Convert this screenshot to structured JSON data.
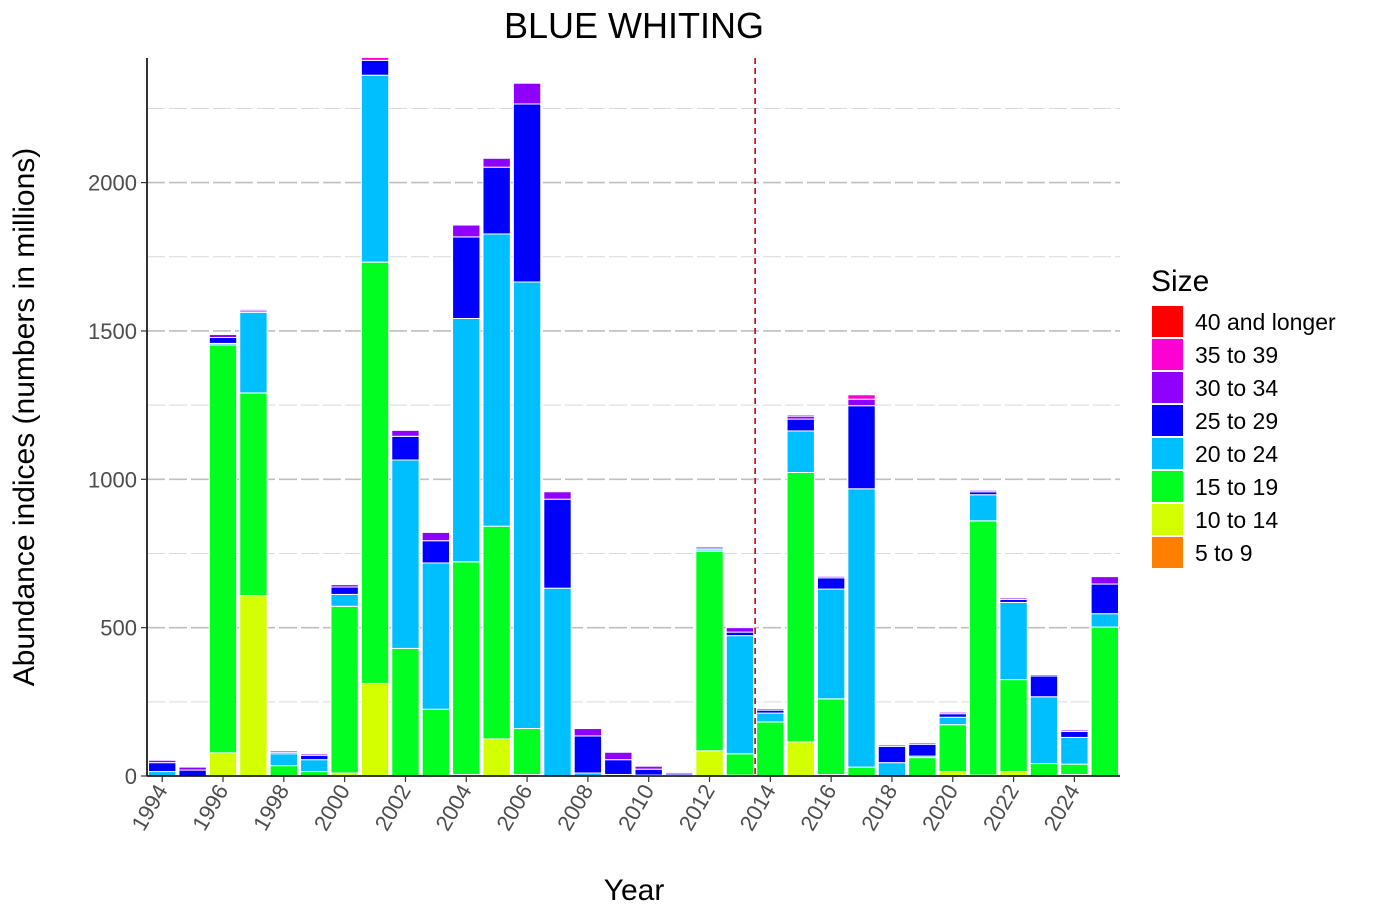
{
  "chart_data": {
    "type": "bar",
    "stacked": true,
    "title": "BLUE WHITING",
    "xlabel": "Year",
    "ylabel": "Abundance indices (numbers in millions)",
    "ylim": [
      0,
      2420
    ],
    "yticks": [
      0,
      500,
      1000,
      1500,
      2000
    ],
    "xticks": [
      1994,
      1996,
      1998,
      2000,
      2002,
      2004,
      2006,
      2008,
      2010,
      2012,
      2014,
      2016,
      2018,
      2020,
      2022,
      2024
    ],
    "grid": true,
    "legend_position": "right",
    "legend_title": "Size",
    "reference_line": {
      "x": 2013.5,
      "style": "dashed",
      "color": "#cc0000"
    },
    "x": [
      1994,
      1995,
      1996,
      1997,
      1998,
      1999,
      2000,
      2001,
      2002,
      2003,
      2004,
      2005,
      2006,
      2007,
      2008,
      2009,
      2010,
      2011,
      2012,
      2013,
      2014,
      2015,
      2016,
      2017,
      2018,
      2019,
      2020,
      2021,
      2022,
      2023,
      2024,
      2025
    ],
    "series": [
      {
        "name": "5 to 9",
        "color": "#ff7f00",
        "values": [
          0,
          0,
          0,
          0,
          0,
          0,
          0,
          0,
          0,
          0,
          0,
          0,
          0,
          0,
          0,
          0,
          0,
          0,
          0,
          0,
          0,
          0,
          0,
          0,
          0,
          0,
          0,
          0,
          0,
          0,
          0,
          0
        ]
      },
      {
        "name": "10 to 14",
        "color": "#d4ff00",
        "values": [
          0,
          0,
          78,
          608,
          0,
          0,
          10,
          312,
          0,
          0,
          5,
          125,
          5,
          0,
          0,
          0,
          0,
          0,
          85,
          3,
          0,
          115,
          5,
          0,
          0,
          0,
          15,
          3,
          15,
          0,
          5,
          0
        ]
      },
      {
        "name": "15 to 19",
        "color": "#00ff20",
        "values": [
          0,
          0,
          1375,
          683,
          35,
          15,
          562,
          1420,
          430,
          225,
          717,
          717,
          155,
          0,
          0,
          0,
          0,
          0,
          673,
          72,
          182,
          908,
          255,
          30,
          0,
          62,
          158,
          857,
          310,
          42,
          35,
          502
        ]
      },
      {
        "name": "20 to 24",
        "color": "#00bfff",
        "values": [
          15,
          0,
          5,
          272,
          40,
          40,
          40,
          630,
          635,
          493,
          820,
          985,
          1505,
          633,
          10,
          5,
          3,
          2,
          5,
          398,
          30,
          140,
          370,
          938,
          45,
          5,
          25,
          88,
          260,
          225,
          90,
          45
        ]
      },
      {
        "name": "25 to 29",
        "color": "#0000ff",
        "values": [
          30,
          20,
          20,
          5,
          5,
          15,
          25,
          50,
          80,
          75,
          275,
          225,
          600,
          300,
          125,
          50,
          20,
          5,
          5,
          12,
          10,
          40,
          38,
          280,
          55,
          40,
          12,
          10,
          10,
          70,
          20,
          100
        ]
      },
      {
        "name": "30 to 34",
        "color": "#8f00ff",
        "values": [
          8,
          10,
          10,
          5,
          5,
          5,
          8,
          0,
          20,
          28,
          40,
          30,
          70,
          25,
          25,
          25,
          10,
          5,
          5,
          15,
          5,
          10,
          5,
          22,
          5,
          5,
          5,
          5,
          5,
          5,
          5,
          25
        ]
      },
      {
        "name": "35 to 39",
        "color": "#ff00d4",
        "values": [
          0,
          0,
          2,
          2,
          0,
          0,
          0,
          10,
          0,
          0,
          0,
          0,
          0,
          0,
          0,
          0,
          0,
          0,
          0,
          0,
          0,
          5,
          0,
          15,
          0,
          0,
          0,
          0,
          0,
          0,
          0,
          0
        ]
      },
      {
        "name": "40 and longer",
        "color": "#ff0000",
        "values": [
          0,
          0,
          0,
          0,
          0,
          0,
          0,
          0,
          0,
          0,
          0,
          0,
          0,
          0,
          0,
          0,
          0,
          0,
          0,
          0,
          0,
          0,
          0,
          0,
          0,
          0,
          0,
          0,
          0,
          0,
          0,
          0
        ]
      }
    ]
  }
}
